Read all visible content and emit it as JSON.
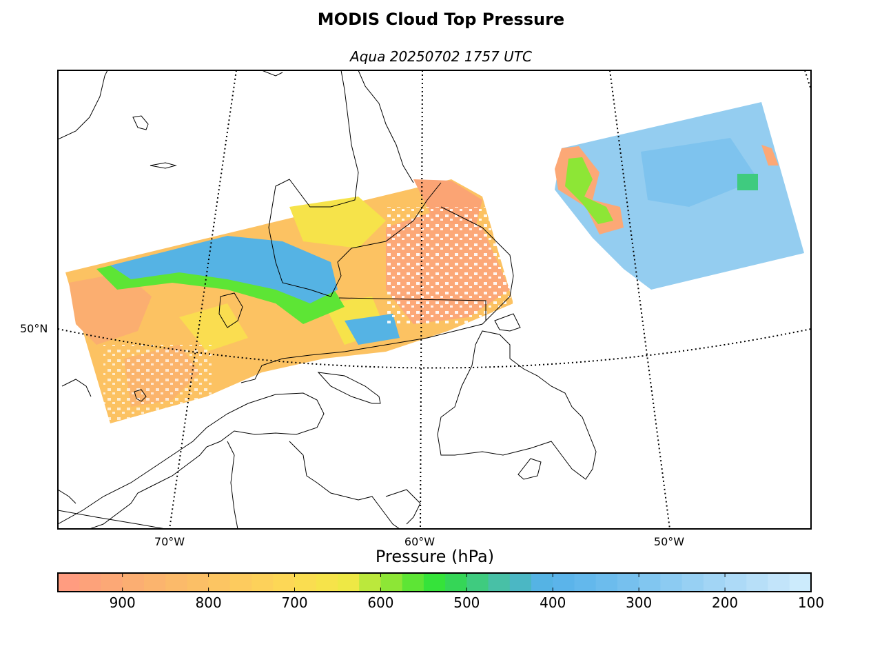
{
  "title": "MODIS Cloud Top Pressure",
  "subtitle": "Aqua 20250702 1757 UTC",
  "map": {
    "projection": "conic",
    "meridian_labels": [
      "70°W",
      "60°W",
      "50°W"
    ],
    "parallel_labels": [
      "50°N"
    ],
    "gridlines": "dotted",
    "coastlines": true,
    "swaths": [
      {
        "name": "swath-west",
        "dominant_pressure_hpa": 800,
        "high_cloud_band_hpa": 400
      },
      {
        "name": "swath-east",
        "dominant_pressure_hpa": 300
      }
    ]
  },
  "colorbar": {
    "title": "Pressure (hPa)",
    "vmin": 100,
    "vmax": 975,
    "direction": "reversed",
    "tick_labels": [
      "900",
      "800",
      "700",
      "600",
      "500",
      "400",
      "300",
      "200",
      "100"
    ],
    "tick_values": [
      900,
      800,
      700,
      600,
      500,
      400,
      300,
      200,
      100
    ],
    "colors": [
      "#ff9c80",
      "#fda27a",
      "#fca876",
      "#fbae72",
      "#fbb46e",
      "#fbba6a",
      "#fbbf66",
      "#fcc562",
      "#fdcb5e",
      "#fdd15a",
      "#fdd756",
      "#fadd50",
      "#f6e34a",
      "#eee845",
      "#bbe83c",
      "#8de636",
      "#5de535",
      "#35e33a",
      "#35d657",
      "#3fcb7f",
      "#48c0a6",
      "#4bb7c4",
      "#55b3e4",
      "#5bb4ea",
      "#63b8ec",
      "#6cbced",
      "#76c0ee",
      "#81c6f0",
      "#8ccbf2",
      "#97d0f3",
      "#a2d5f5",
      "#addaf7",
      "#b7dff8",
      "#c2e4fa",
      "#ccebfc"
    ]
  }
}
